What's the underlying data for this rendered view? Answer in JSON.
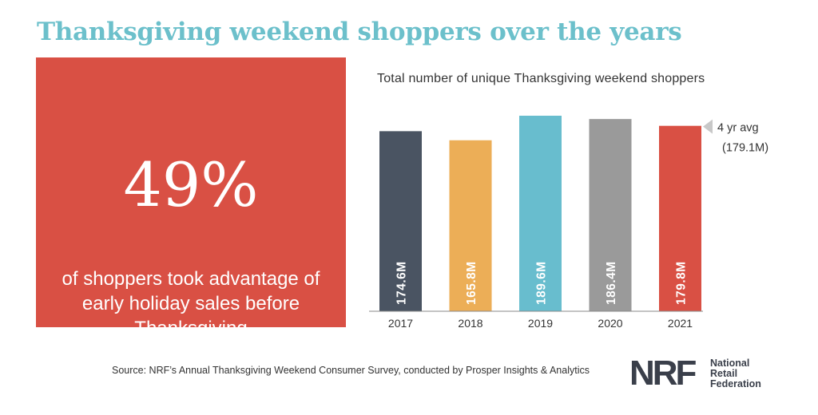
{
  "headline": "Thanksgiving weekend shoppers over the years",
  "stat": {
    "value": "49%",
    "caption": "of shoppers took advantage of early holiday sales before Thanksgiving"
  },
  "chart_data": {
    "type": "bar",
    "title": "Total number of unique Thanksgiving weekend shoppers",
    "categories": [
      "2017",
      "2018",
      "2019",
      "2020",
      "2021"
    ],
    "values": [
      174.6,
      165.8,
      189.6,
      186.4,
      179.8
    ],
    "value_labels": [
      "174.6M",
      "165.8M",
      "189.6M",
      "186.4M",
      "179.8M"
    ],
    "colors": [
      "#4a5462",
      "#ecae57",
      "#68bdce",
      "#9a9a9a",
      "#d95044"
    ],
    "unit": "M",
    "ylim": [
      0,
      189.6
    ],
    "grid": false,
    "reference": {
      "value": 179.1,
      "label_line1": "4 yr avg",
      "label_line2": "(179.1M)",
      "marker_color": "#c8c8c8"
    }
  },
  "source": "Source: NRF’s Annual Thanksgiving Weekend Consumer Survey, conducted by Prosper Insights & Analytics",
  "logo": {
    "mark": "NRF",
    "line1": "National",
    "line2": "Retail",
    "line3": "Federation"
  }
}
